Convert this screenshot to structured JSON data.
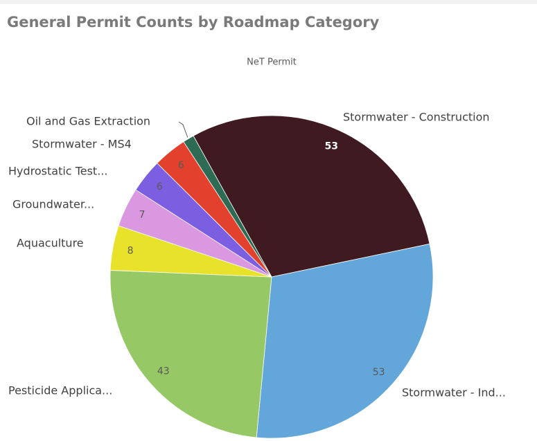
{
  "chart_data": {
    "type": "pie",
    "title": "General Permit Counts by Roadmap Category",
    "subtitle": "NeT Permit",
    "categories": [
      "Stormwater - Construction",
      "Stormwater - Ind...",
      "Pesticide Applica...",
      "Aquaculture",
      "Groundwater...",
      "Hydrostatic Test...",
      "Stormwater - MS4",
      "Oil and Gas Extraction"
    ],
    "values": [
      53,
      53,
      43,
      8,
      7,
      6,
      6,
      2
    ],
    "colors": [
      "#3f1a20",
      "#63a6da",
      "#97c866",
      "#e8e22a",
      "#d998e0",
      "#7b5fe0",
      "#e2412d",
      "#2e6b55"
    ]
  }
}
